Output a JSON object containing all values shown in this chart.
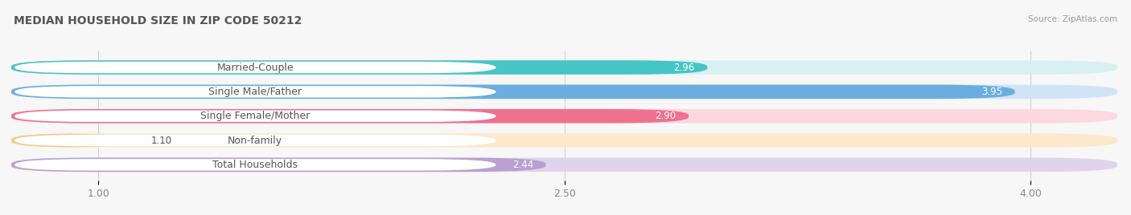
{
  "title": "MEDIAN HOUSEHOLD SIZE IN ZIP CODE 50212",
  "source": "Source: ZipAtlas.com",
  "categories": [
    "Married-Couple",
    "Single Male/Father",
    "Single Female/Mother",
    "Non-family",
    "Total Households"
  ],
  "values": [
    2.96,
    3.95,
    2.9,
    1.1,
    2.44
  ],
  "bar_colors": [
    "#45c5c5",
    "#6aaee0",
    "#f07090",
    "#f5c98a",
    "#b8a0d0"
  ],
  "bar_bg_colors": [
    "#d8f0f0",
    "#d0e4f5",
    "#fcd8e0",
    "#fde8cc",
    "#e0d4ec"
  ],
  "value_white": [
    true,
    true,
    true,
    false,
    false
  ],
  "xlim_left": 0.72,
  "xlim_right": 4.28,
  "xticks": [
    1.0,
    2.5,
    4.0
  ],
  "xtick_labels": [
    "1.00",
    "2.50",
    "4.00"
  ],
  "background_color": "#f7f7f7",
  "bar_background_color": "#e8e8e8",
  "title_fontsize": 10,
  "tick_fontsize": 9,
  "cat_label_fontsize": 9,
  "value_fontsize": 8.5,
  "bar_height": 0.58,
  "pill_rounding": 0.25,
  "label_pill_color": "#ffffff",
  "label_text_color": "#555555",
  "grid_color": "#d0d0d0",
  "source_color": "#999999"
}
